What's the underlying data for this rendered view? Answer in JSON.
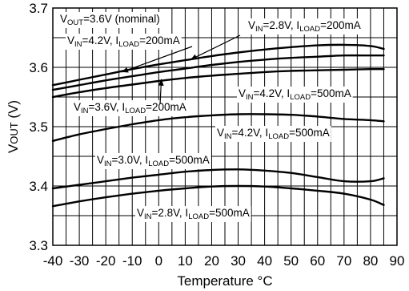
{
  "chart_data": {
    "type": "line",
    "title": "",
    "xlabel": "Temperature °C",
    "ylabel": "VOUT (V)",
    "xlim": [
      -40,
      90
    ],
    "ylim": [
      3.3,
      3.7
    ],
    "x_ticks": [
      "-40",
      "-30",
      "-20",
      "-10",
      "0",
      "10",
      "20",
      "30",
      "40",
      "50",
      "60",
      "70",
      "80",
      "90"
    ],
    "y_ticks": [
      "3.3",
      "3.4",
      "3.5",
      "3.6",
      "3.7"
    ],
    "grid": true,
    "note": "VOUT=3.6V (nominal)",
    "series": [
      {
        "name": "VIN=2.8V, ILOAD=200mA",
        "label_parts": [
          "V",
          "IN",
          "=2.8V, I",
          "LOAD",
          "=200mA"
        ],
        "x": [
          -40,
          -30,
          -20,
          -10,
          0,
          10,
          20,
          30,
          40,
          50,
          60,
          70,
          80,
          85
        ],
        "y": [
          3.57,
          3.579,
          3.588,
          3.597,
          3.605,
          3.612,
          3.619,
          3.625,
          3.63,
          3.634,
          3.637,
          3.638,
          3.636,
          3.631
        ]
      },
      {
        "name": "VIN=4.2V, ILOAD=200mA",
        "label_parts": [
          "V",
          "IN",
          "=4.2V, I",
          "LOAD",
          "=200mA"
        ],
        "x": [
          -40,
          -30,
          -20,
          -10,
          0,
          10,
          20,
          30,
          40,
          50,
          60,
          70,
          80,
          85
        ],
        "y": [
          3.562,
          3.57,
          3.578,
          3.585,
          3.592,
          3.598,
          3.604,
          3.609,
          3.613,
          3.616,
          3.618,
          3.62,
          3.62,
          3.62
        ]
      },
      {
        "name": "VIN=3.6V, ILOAD=200mA",
        "label_parts": [
          "V",
          "IN",
          "=3.6V, I",
          "LOAD",
          "=200mA"
        ],
        "x": [
          -40,
          -30,
          -20,
          -10,
          0,
          10,
          20,
          30,
          40,
          50,
          60,
          70,
          80,
          85
        ],
        "y": [
          3.55,
          3.558,
          3.565,
          3.571,
          3.577,
          3.582,
          3.586,
          3.589,
          3.592,
          3.594,
          3.595,
          3.596,
          3.597,
          3.597
        ]
      },
      {
        "name": "VIN=4.2V, ILOAD=500mA",
        "label_parts": [
          "V",
          "IN",
          "=4.2V, I",
          "LOAD",
          "=500mA"
        ],
        "x": [
          -40,
          -30,
          -20,
          -10,
          0,
          10,
          20,
          30,
          40,
          50,
          60,
          70,
          80,
          85
        ],
        "y": [
          3.476,
          3.487,
          3.496,
          3.504,
          3.511,
          3.516,
          3.519,
          3.521,
          3.521,
          3.52,
          3.517,
          3.513,
          3.511,
          3.509
        ]
      },
      {
        "name": "VIN=3.0V, ILOAD=500mA",
        "label_parts": [
          "V",
          "IN",
          "=3.0V, I",
          "LOAD",
          "=500mA"
        ],
        "x": [
          -40,
          -30,
          -20,
          -10,
          0,
          10,
          20,
          30,
          40,
          50,
          60,
          70,
          80,
          85
        ],
        "y": [
          3.396,
          3.402,
          3.408,
          3.414,
          3.419,
          3.424,
          3.427,
          3.428,
          3.426,
          3.422,
          3.415,
          3.408,
          3.408,
          3.413
        ]
      },
      {
        "name": "VIN=2.8V, ILOAD=500mA",
        "label_parts": [
          "V",
          "IN",
          "=2.8V, I",
          "LOAD",
          "=500mA"
        ],
        "x": [
          -40,
          -30,
          -20,
          -10,
          0,
          10,
          20,
          30,
          40,
          50,
          60,
          70,
          80,
          85
        ],
        "y": [
          3.366,
          3.374,
          3.381,
          3.387,
          3.392,
          3.396,
          3.399,
          3.4,
          3.399,
          3.396,
          3.392,
          3.387,
          3.377,
          3.368
        ]
      }
    ]
  }
}
